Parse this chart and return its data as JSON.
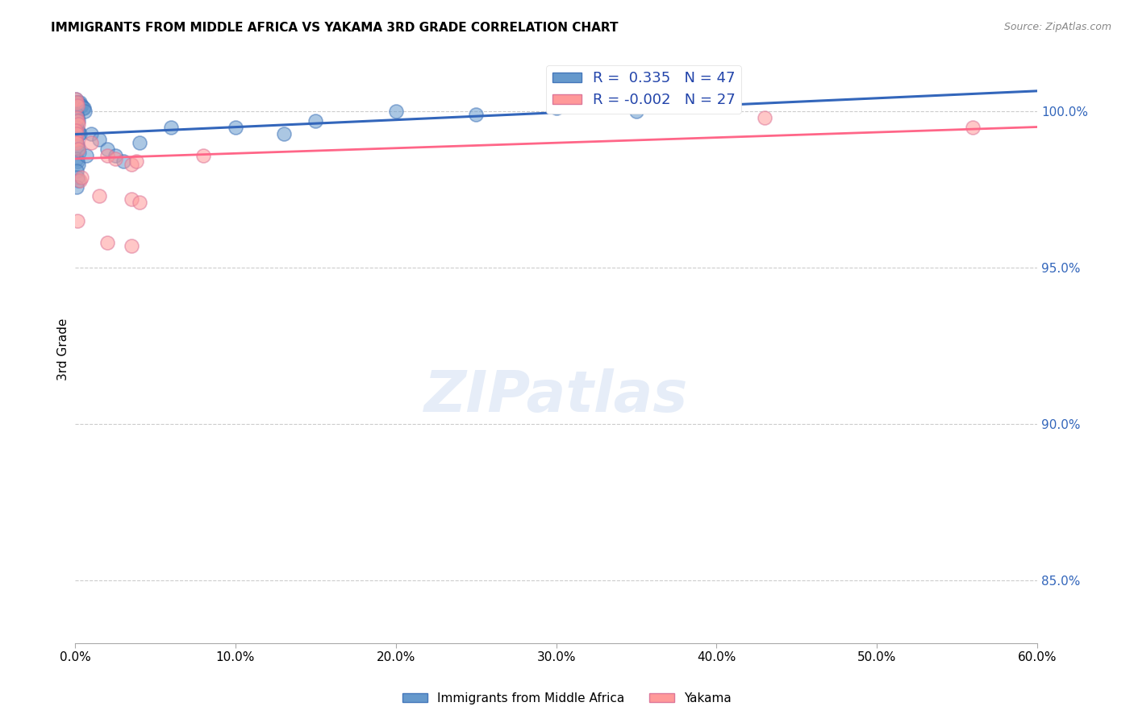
{
  "title": "IMMIGRANTS FROM MIDDLE AFRICA VS YAKAMA 3RD GRADE CORRELATION CHART",
  "source": "Source: ZipAtlas.com",
  "xlabel": "",
  "ylabel": "3rd Grade",
  "x_tick_labels": [
    "0.0%",
    "10.0%",
    "20.0%",
    "30.0%",
    "40.0%",
    "50.0%",
    "60.0%"
  ],
  "x_tick_values": [
    0,
    10,
    20,
    30,
    40,
    50,
    60
  ],
  "y_tick_labels": [
    "85.0%",
    "90.0%",
    "95.0%",
    "100.0%"
  ],
  "y_tick_values": [
    85,
    90,
    95,
    100
  ],
  "xlim": [
    0,
    60
  ],
  "ylim": [
    83,
    101.8
  ],
  "blue_r": 0.335,
  "blue_n": 47,
  "pink_r": -0.002,
  "pink_n": 27,
  "blue_color": "#6699CC",
  "pink_color": "#FF9999",
  "trendline_blue": "#3366BB",
  "trendline_pink": "#FF6688",
  "legend_label_blue": "Immigrants from Middle Africa",
  "legend_label_pink": "Yakama",
  "watermark": "ZIPatlas",
  "blue_dots": [
    [
      0.05,
      100.4
    ],
    [
      0.1,
      100.3
    ],
    [
      0.15,
      100.3
    ],
    [
      0.05,
      100.1
    ],
    [
      0.2,
      100.3
    ],
    [
      0.25,
      100.2
    ],
    [
      0.3,
      100.3
    ],
    [
      0.35,
      100.2
    ],
    [
      0.4,
      100.2
    ],
    [
      0.5,
      100.1
    ],
    [
      0.55,
      100.1
    ],
    [
      0.6,
      100.0
    ],
    [
      0.1,
      99.9
    ],
    [
      0.15,
      99.8
    ],
    [
      0.2,
      99.7
    ],
    [
      0.1,
      99.5
    ],
    [
      0.15,
      99.4
    ],
    [
      0.2,
      99.4
    ],
    [
      0.25,
      99.3
    ],
    [
      0.3,
      99.3
    ],
    [
      0.1,
      99.0
    ],
    [
      0.15,
      98.9
    ],
    [
      0.2,
      98.8
    ],
    [
      0.25,
      98.7
    ],
    [
      0.1,
      98.5
    ],
    [
      0.15,
      98.4
    ],
    [
      0.2,
      98.3
    ],
    [
      0.1,
      98.1
    ],
    [
      0.15,
      97.9
    ],
    [
      0.2,
      97.8
    ],
    [
      0.1,
      97.6
    ],
    [
      1.0,
      99.3
    ],
    [
      1.5,
      99.1
    ],
    [
      2.0,
      98.8
    ],
    [
      2.5,
      98.6
    ],
    [
      3.0,
      98.4
    ],
    [
      0.7,
      98.6
    ],
    [
      4.0,
      99.0
    ],
    [
      6.0,
      99.5
    ],
    [
      10.0,
      99.5
    ],
    [
      13.0,
      99.3
    ],
    [
      15.0,
      99.7
    ],
    [
      20.0,
      100.0
    ],
    [
      25.0,
      99.9
    ],
    [
      30.0,
      100.1
    ],
    [
      35.0,
      100.0
    ],
    [
      40.0,
      100.2
    ]
  ],
  "pink_dots": [
    [
      0.05,
      100.4
    ],
    [
      0.1,
      100.3
    ],
    [
      0.15,
      100.2
    ],
    [
      0.1,
      99.8
    ],
    [
      0.15,
      99.7
    ],
    [
      0.2,
      99.6
    ],
    [
      0.05,
      99.4
    ],
    [
      0.1,
      99.3
    ],
    [
      0.05,
      99.1
    ],
    [
      0.1,
      99.0
    ],
    [
      0.2,
      98.8
    ],
    [
      1.0,
      99.0
    ],
    [
      2.0,
      98.6
    ],
    [
      2.5,
      98.5
    ],
    [
      3.5,
      98.3
    ],
    [
      3.8,
      98.4
    ],
    [
      0.3,
      97.8
    ],
    [
      0.4,
      97.9
    ],
    [
      1.5,
      97.3
    ],
    [
      3.5,
      97.2
    ],
    [
      4.0,
      97.1
    ],
    [
      0.15,
      96.5
    ],
    [
      2.0,
      95.8
    ],
    [
      3.5,
      95.7
    ],
    [
      8.0,
      98.6
    ],
    [
      43.0,
      99.8
    ],
    [
      56.0,
      99.5
    ]
  ]
}
